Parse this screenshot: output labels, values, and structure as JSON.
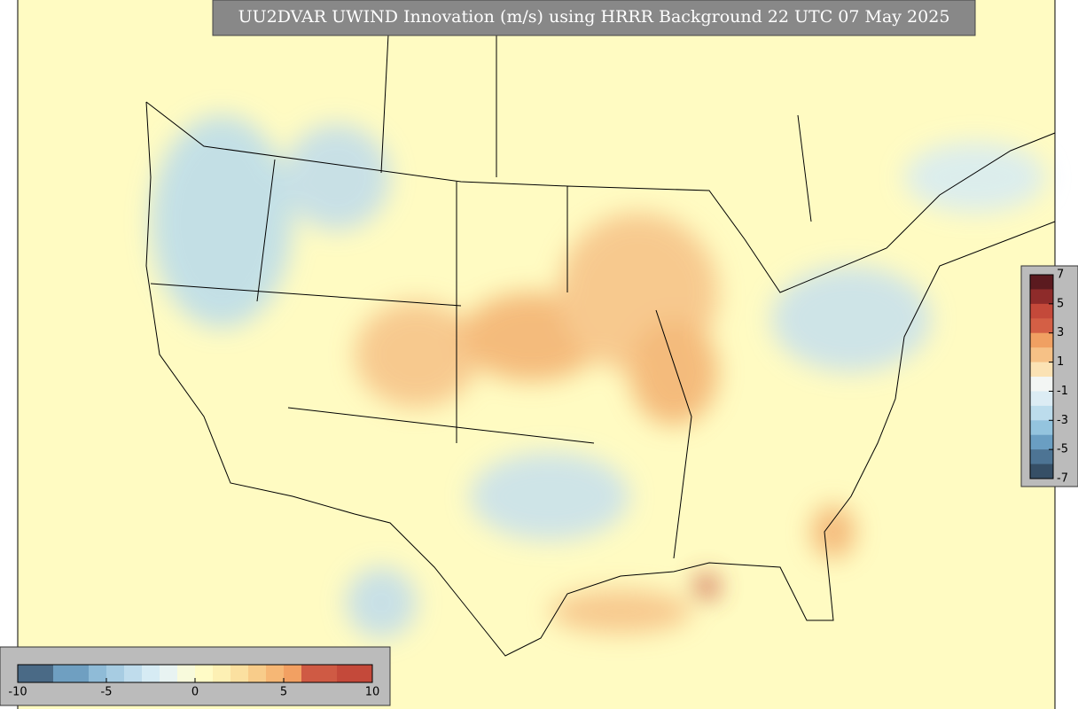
{
  "title": "UU2DVAR UWIND Innovation (m/s) using HRRR Background 22 UTC 07 May 2025",
  "colorbar_right": {
    "ticks": [
      7,
      5,
      3,
      1,
      -1,
      -3,
      -5,
      -7
    ],
    "colors": [
      "#5b1a1f",
      "#8e2b2a",
      "#c4493a",
      "#d45f45",
      "#f0a062",
      "#f6c186",
      "#fbe2b4",
      "#f3f6f4",
      "#dcecf4",
      "#bcdcec",
      "#94c4de",
      "#6a9ec2",
      "#4d7494",
      "#364f66"
    ]
  },
  "colorbar_bottom": {
    "ticks": [
      -10,
      -5,
      0,
      5,
      10
    ],
    "colors": [
      "#4a6a86",
      "#4a6a86",
      "#6f9fc1",
      "#6f9fc1",
      "#8fbbd7",
      "#a7cce2",
      "#bfdcec",
      "#d6ebf4",
      "#e8f3f2",
      "#f8fadc",
      "#fffbc6",
      "#fdf0b4",
      "#fbe0a0",
      "#f8cc8a",
      "#f6b775",
      "#f2a062",
      "#cf5a44",
      "#cf5a44",
      "#c4493a",
      "#c4493a"
    ]
  }
}
